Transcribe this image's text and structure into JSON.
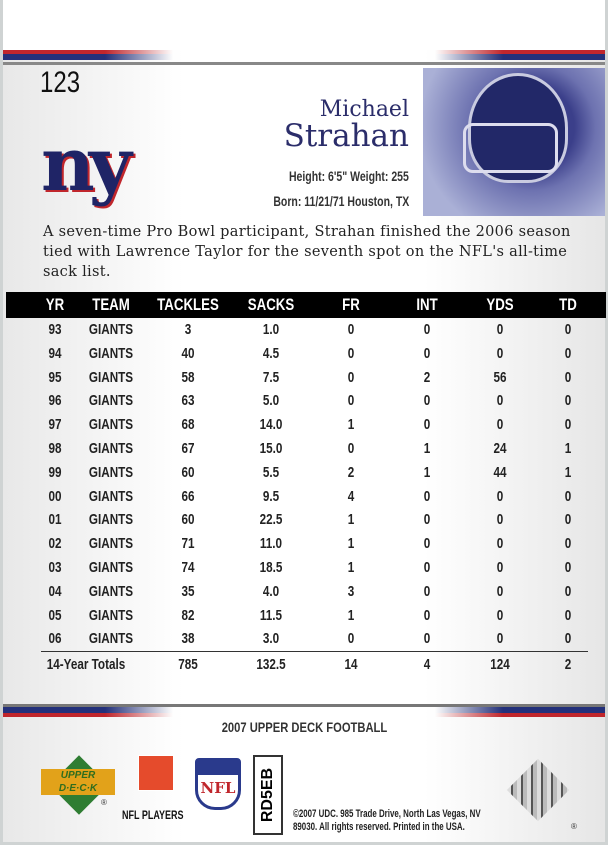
{
  "card": {
    "number": "123",
    "team_logo": "ny",
    "first_name": "Michael",
    "last_name": "Strahan",
    "height_weight": "Height: 6'5\" Weight: 255",
    "born": "Born: 11/21/71 Houston, TX",
    "bio": "A seven-time Pro Bowl participant, Strahan finished the 2006 season tied with Lawrence Taylor for the seventh spot on the NFL's all-time sack list.",
    "colors": {
      "red": "#c0262c",
      "blue": "#23307a"
    }
  },
  "stats": {
    "headers": [
      "YR",
      "TEAM",
      "TACKLES",
      "SACKS",
      "FR",
      "INT",
      "YDS",
      "TD"
    ],
    "rows": [
      [
        "93",
        "GIANTS",
        "3",
        "1.0",
        "0",
        "0",
        "0",
        "0"
      ],
      [
        "94",
        "GIANTS",
        "40",
        "4.5",
        "0",
        "0",
        "0",
        "0"
      ],
      [
        "95",
        "GIANTS",
        "58",
        "7.5",
        "0",
        "2",
        "56",
        "0"
      ],
      [
        "96",
        "GIANTS",
        "63",
        "5.0",
        "0",
        "0",
        "0",
        "0"
      ],
      [
        "97",
        "GIANTS",
        "68",
        "14.0",
        "1",
        "0",
        "0",
        "0"
      ],
      [
        "98",
        "GIANTS",
        "67",
        "15.0",
        "0",
        "1",
        "24",
        "1"
      ],
      [
        "99",
        "GIANTS",
        "60",
        "5.5",
        "2",
        "1",
        "44",
        "1"
      ],
      [
        "00",
        "GIANTS",
        "66",
        "9.5",
        "4",
        "0",
        "0",
        "0"
      ],
      [
        "01",
        "GIANTS",
        "60",
        "22.5",
        "1",
        "0",
        "0",
        "0"
      ],
      [
        "02",
        "GIANTS",
        "71",
        "11.0",
        "1",
        "0",
        "0",
        "0"
      ],
      [
        "03",
        "GIANTS",
        "74",
        "18.5",
        "1",
        "0",
        "0",
        "0"
      ],
      [
        "04",
        "GIANTS",
        "35",
        "4.0",
        "3",
        "0",
        "0",
        "0"
      ],
      [
        "05",
        "GIANTS",
        "82",
        "11.5",
        "1",
        "0",
        "0",
        "0"
      ],
      [
        "06",
        "GIANTS",
        "38",
        "3.0",
        "0",
        "0",
        "0",
        "0"
      ]
    ],
    "totals": [
      "14-Year Totals",
      "785",
      "132.5",
      "14",
      "4",
      "124",
      "2"
    ]
  },
  "footer": {
    "series": "2007 UPPER DECK FOOTBALL",
    "upper_deck_logo": "UPPER DECK",
    "upper_deck_line1": "UPPER",
    "upper_deck_line2": "D·E·C·K",
    "registered": "®",
    "nfl_players": "NFL PLAYERS",
    "nfl_logo": "NFL",
    "code": "RD5EB",
    "copyright_line1": "©2007 UDC. 985 Trade Drive, North Las Vegas, NV",
    "copyright_line2": "89030. All rights reserved. Printed in the USA."
  }
}
